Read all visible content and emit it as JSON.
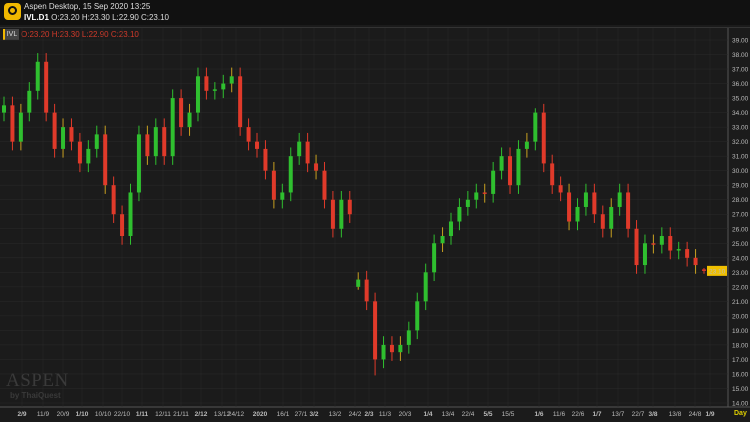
{
  "window": {
    "title": "Aspen Desktop, 15 Sep 2020 13:25",
    "symbol": "IVL.D1",
    "ohlc": "O:23.20 H:23.30 L:22.90 C:23.10"
  },
  "legend": {
    "symbol": "IVL",
    "ohlc": "O:23.20 H:23.30 L:22.90 C:23.10"
  },
  "watermark": {
    "brand": "ASPEN",
    "sub": "by ThaiQuest"
  },
  "colors": {
    "up": "#2fbf2f",
    "down": "#e03a2a",
    "neutral": "#c8a020",
    "last_price_bg": "#f0c000",
    "grid": "#2a2a2a"
  },
  "chart_data": {
    "type": "candlestick",
    "timeframe": "Day",
    "ylim": [
      14,
      39
    ],
    "y_ticks": [
      "14.00",
      "15.00",
      "16.00",
      "17.00",
      "18.00",
      "19.00",
      "20.00",
      "21.00",
      "22.00",
      "23.00",
      "24.00",
      "25.00",
      "26.00",
      "27.00",
      "28.00",
      "29.00",
      "30.00",
      "31.00",
      "32.00",
      "33.00",
      "34.00",
      "35.00",
      "36.00",
      "37.00",
      "38.00",
      "39.00"
    ],
    "x_ticks": [
      {
        "label": "2/9",
        "bold": true
      },
      {
        "label": "11/9"
      },
      {
        "label": "20/9"
      },
      {
        "label": "1/10",
        "bold": true
      },
      {
        "label": "10/10"
      },
      {
        "label": "22/10"
      },
      {
        "label": "1/11",
        "bold": true
      },
      {
        "label": "12/11"
      },
      {
        "label": "21/11"
      },
      {
        "label": "2/12",
        "bold": true
      },
      {
        "label": "13/12"
      },
      {
        "label": "24/12"
      },
      {
        "label": "2020",
        "bold": true
      },
      {
        "label": "16/1"
      },
      {
        "label": "27/1"
      },
      {
        "label": "3/2",
        "bold": true
      },
      {
        "label": "13/2"
      },
      {
        "label": "24/2"
      },
      {
        "label": "2/3",
        "bold": true
      },
      {
        "label": "11/3"
      },
      {
        "label": "20/3"
      },
      {
        "label": "1/4",
        "bold": true
      },
      {
        "label": "13/4"
      },
      {
        "label": "22/4"
      },
      {
        "label": "5/5",
        "bold": true
      },
      {
        "label": "15/5"
      },
      {
        "label": "1/6",
        "bold": true
      },
      {
        "label": "11/6"
      },
      {
        "label": "22/6"
      },
      {
        "label": "1/7",
        "bold": true
      },
      {
        "label": "13/7"
      },
      {
        "label": "22/7"
      },
      {
        "label": "3/8",
        "bold": true
      },
      {
        "label": "13/8"
      },
      {
        "label": "24/8"
      },
      {
        "label": "1/9",
        "bold": true
      }
    ],
    "last_price": "23.10",
    "candles": [
      [
        34,
        35.1,
        33.4,
        34.5
      ],
      [
        34.5,
        35.1,
        31.4,
        32
      ],
      [
        32,
        34.6,
        31.4,
        34
      ],
      [
        34,
        36.1,
        33.4,
        35.5
      ],
      [
        35.5,
        38.1,
        34.9,
        37.5
      ],
      [
        37.5,
        38.1,
        33.4,
        34
      ],
      [
        34,
        34.6,
        30.9,
        31.5
      ],
      [
        31.5,
        33.6,
        30.9,
        33
      ],
      [
        33,
        33.6,
        31.4,
        32
      ],
      [
        32,
        32.6,
        29.9,
        30.5
      ],
      [
        30.5,
        32.1,
        29.9,
        31.5
      ],
      [
        31.5,
        33.1,
        30.9,
        32.5
      ],
      [
        32.5,
        33.1,
        28.4,
        29
      ],
      [
        29,
        29.6,
        26.4,
        27
      ],
      [
        27,
        27.6,
        24.9,
        25.5
      ],
      [
        25.5,
        29.1,
        24.9,
        28.5
      ],
      [
        28.5,
        33.1,
        27.9,
        32.5
      ],
      [
        32.5,
        33.1,
        30.4,
        31
      ],
      [
        31,
        33.6,
        30.4,
        33
      ],
      [
        33,
        33.6,
        30.4,
        31
      ],
      [
        31,
        35.6,
        30.4,
        35
      ],
      [
        35,
        35.6,
        32.4,
        33
      ],
      [
        33,
        34.6,
        32.4,
        34
      ],
      [
        34,
        37.1,
        33.4,
        36.5
      ],
      [
        36.5,
        37.1,
        34.9,
        35.5
      ],
      [
        35.5,
        36.1,
        34.9,
        35.6
      ],
      [
        35.6,
        36.6,
        35,
        36
      ],
      [
        36,
        37.1,
        35.4,
        36.5
      ],
      [
        36.5,
        37.1,
        32.4,
        33
      ],
      [
        33,
        33.6,
        31.4,
        32
      ],
      [
        32,
        32.6,
        30.9,
        31.5
      ],
      [
        31.5,
        32.1,
        29.4,
        30
      ],
      [
        30,
        30.6,
        27.4,
        28
      ],
      [
        28,
        29.1,
        27.4,
        28.5
      ],
      [
        28.5,
        31.6,
        27.9,
        31
      ],
      [
        31,
        32.6,
        30.4,
        32
      ],
      [
        32,
        32.6,
        29.9,
        30.5
      ],
      [
        30.5,
        31.1,
        29.4,
        30
      ],
      [
        30,
        30.6,
        27.4,
        28
      ],
      [
        28,
        28.6,
        25.4,
        26
      ],
      [
        26,
        28.6,
        25.4,
        28
      ],
      [
        28,
        28.6,
        26.4,
        27
      ],
      [
        22,
        23,
        21.8,
        22.5
      ],
      [
        22.5,
        23.1,
        20.4,
        21
      ],
      [
        21,
        21.6,
        15.9,
        17
      ],
      [
        17,
        18.6,
        16.4,
        18
      ],
      [
        18,
        18.6,
        16.9,
        17.5
      ],
      [
        17.5,
        18.6,
        16.9,
        18
      ],
      [
        18,
        19.6,
        17.4,
        19
      ],
      [
        19,
        21.6,
        18.4,
        21
      ],
      [
        21,
        23.6,
        20.4,
        23
      ],
      [
        23,
        25.6,
        22.4,
        25
      ],
      [
        25,
        26.1,
        24.4,
        25.5
      ],
      [
        25.5,
        27.1,
        24.9,
        26.5
      ],
      [
        26.5,
        28.1,
        25.9,
        27.5
      ],
      [
        27.5,
        28.6,
        26.9,
        28
      ],
      [
        28,
        29.1,
        27.4,
        28.5
      ],
      [
        28.5,
        29.1,
        27.8,
        28.4
      ],
      [
        28.4,
        30.6,
        27.8,
        30
      ],
      [
        30,
        31.6,
        29.4,
        31
      ],
      [
        31,
        31.6,
        28.4,
        29
      ],
      [
        29,
        32.1,
        28.4,
        31.5
      ],
      [
        31.5,
        32.6,
        30.9,
        32
      ],
      [
        32,
        34.3,
        31.4,
        34
      ],
      [
        34,
        34.6,
        29.9,
        30.5
      ],
      [
        30.5,
        31.1,
        28.4,
        29
      ],
      [
        29,
        29.6,
        27.9,
        28.5
      ],
      [
        28.5,
        29.1,
        25.9,
        26.5
      ],
      [
        26.5,
        28.1,
        25.9,
        27.5
      ],
      [
        27.5,
        29.1,
        26.9,
        28.5
      ],
      [
        28.5,
        29.1,
        26.4,
        27
      ],
      [
        27,
        27.6,
        25.4,
        26
      ],
      [
        26,
        28.1,
        25.4,
        27.5
      ],
      [
        27.5,
        29.1,
        26.9,
        28.5
      ],
      [
        28.5,
        29.1,
        25.4,
        26
      ],
      [
        26,
        26.6,
        22.9,
        23.5
      ],
      [
        23.5,
        25.6,
        22.9,
        25
      ],
      [
        25,
        25.6,
        24.3,
        24.9
      ],
      [
        24.9,
        26.1,
        24.3,
        25.5
      ],
      [
        25.5,
        26.1,
        23.9,
        24.5
      ],
      [
        24.5,
        25.1,
        23.9,
        24.6
      ],
      [
        24.6,
        25.1,
        23.4,
        24
      ],
      [
        24,
        24.6,
        22.9,
        23.5
      ],
      [
        23.2,
        23.3,
        22.9,
        23.1
      ]
    ]
  }
}
